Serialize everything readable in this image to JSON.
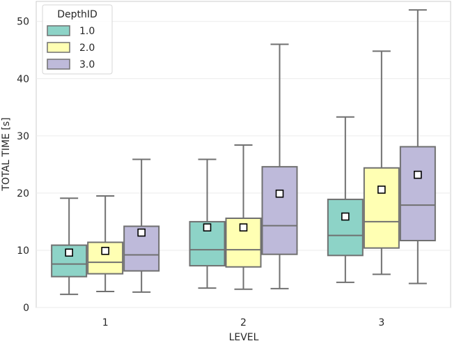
{
  "chart_data": {
    "type": "boxplot",
    "title": "",
    "xlabel": "LEVEL",
    "ylabel": "TOTAL TIME [s]",
    "ylim": [
      0,
      53.5
    ],
    "yticks": [
      0,
      10,
      20,
      30,
      40,
      50
    ],
    "categories": [
      "1",
      "2",
      "3"
    ],
    "legend": {
      "title": "DepthID",
      "position": "top-left"
    },
    "series": [
      {
        "name": "1.0",
        "color": "#8dd3c7",
        "boxes": [
          {
            "whisker_low": 2.3,
            "q1": 5.4,
            "median": 7.6,
            "q3": 10.9,
            "whisker_high": 19.1,
            "mean": 9.6
          },
          {
            "whisker_low": 3.4,
            "q1": 7.3,
            "median": 10.1,
            "q3": 15.0,
            "whisker_high": 25.9,
            "mean": 14.0
          },
          {
            "whisker_low": 4.4,
            "q1": 9.1,
            "median": 12.6,
            "q3": 18.9,
            "whisker_high": 33.3,
            "mean": 15.9
          }
        ]
      },
      {
        "name": "2.0",
        "color": "#ffffb3",
        "boxes": [
          {
            "whisker_low": 2.8,
            "q1": 5.9,
            "median": 7.9,
            "q3": 11.4,
            "whisker_high": 19.5,
            "mean": 9.9
          },
          {
            "whisker_low": 3.2,
            "q1": 7.1,
            "median": 10.1,
            "q3": 15.6,
            "whisker_high": 28.4,
            "mean": 14.0
          },
          {
            "whisker_low": 5.8,
            "q1": 10.4,
            "median": 15.0,
            "q3": 24.4,
            "whisker_high": 44.8,
            "mean": 20.6
          }
        ]
      },
      {
        "name": "3.0",
        "color": "#bebada",
        "boxes": [
          {
            "whisker_low": 2.7,
            "q1": 6.4,
            "median": 9.2,
            "q3": 14.2,
            "whisker_high": 25.9,
            "mean": 13.1
          },
          {
            "whisker_low": 3.3,
            "q1": 9.3,
            "median": 14.3,
            "q3": 24.6,
            "whisker_high": 46.0,
            "mean": 19.9
          },
          {
            "whisker_low": 4.2,
            "q1": 11.7,
            "median": 17.9,
            "q3": 28.1,
            "whisker_high": 52.0,
            "mean": 23.2
          }
        ]
      }
    ]
  }
}
